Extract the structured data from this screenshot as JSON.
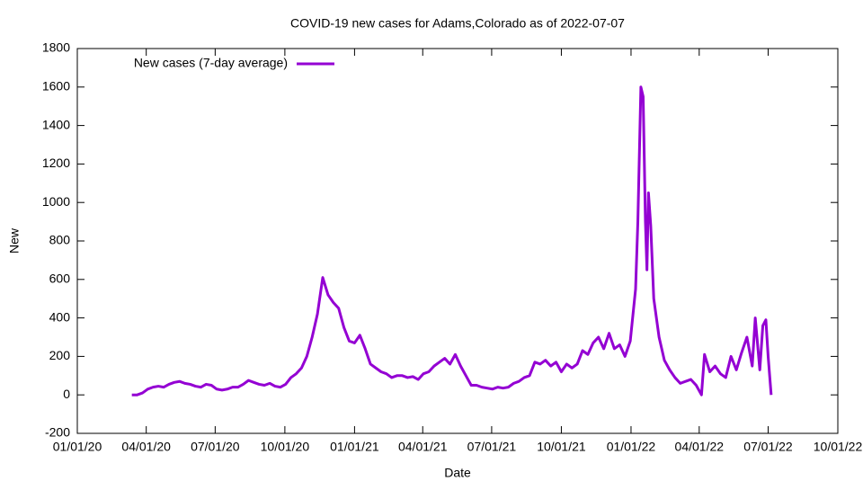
{
  "chart_data": {
    "type": "line",
    "title": "COVID-19 new cases for Adams,Colorado as of 2022-07-07",
    "x_label": "Date",
    "y_label": "New",
    "legend": "top left",
    "xlim": [
      "2020-01-01",
      "2022-10-01"
    ],
    "xticks": [
      {
        "value": "2020-01-01",
        "label": "01/01/20"
      },
      {
        "value": "2020-04-01",
        "label": "04/01/20"
      },
      {
        "value": "2020-07-01",
        "label": "07/01/20"
      },
      {
        "value": "2020-10-01",
        "label": "10/01/20"
      },
      {
        "value": "2021-01-01",
        "label": "01/01/21"
      },
      {
        "value": "2021-04-01",
        "label": "04/01/21"
      },
      {
        "value": "2021-07-01",
        "label": "07/01/21"
      },
      {
        "value": "2021-10-01",
        "label": "10/01/21"
      },
      {
        "value": "2022-01-01",
        "label": "01/01/22"
      },
      {
        "value": "2022-04-01",
        "label": "04/01/22"
      },
      {
        "value": "2022-07-01",
        "label": "07/01/22"
      },
      {
        "value": "2022-10-01",
        "label": "10/01/22"
      }
    ],
    "ylim": [
      -200,
      1800
    ],
    "yticks": [
      -200,
      0,
      200,
      400,
      600,
      800,
      1000,
      1200,
      1400,
      1600,
      1800
    ],
    "x": [
      "2020-03-13",
      "2020-03-20",
      "2020-03-27",
      "2020-04-03",
      "2020-04-10",
      "2020-04-17",
      "2020-04-24",
      "2020-05-01",
      "2020-05-08",
      "2020-05-15",
      "2020-05-22",
      "2020-05-29",
      "2020-06-05",
      "2020-06-12",
      "2020-06-19",
      "2020-06-26",
      "2020-07-03",
      "2020-07-10",
      "2020-07-17",
      "2020-07-24",
      "2020-07-31",
      "2020-08-07",
      "2020-08-14",
      "2020-08-21",
      "2020-08-28",
      "2020-09-04",
      "2020-09-11",
      "2020-09-18",
      "2020-09-25",
      "2020-10-02",
      "2020-10-09",
      "2020-10-16",
      "2020-10-23",
      "2020-10-30",
      "2020-11-06",
      "2020-11-13",
      "2020-11-20",
      "2020-11-27",
      "2020-12-04",
      "2020-12-11",
      "2020-12-18",
      "2020-12-25",
      "2021-01-01",
      "2021-01-08",
      "2021-01-15",
      "2021-01-22",
      "2021-01-29",
      "2021-02-05",
      "2021-02-12",
      "2021-02-19",
      "2021-02-26",
      "2021-03-05",
      "2021-03-12",
      "2021-03-19",
      "2021-03-26",
      "2021-04-02",
      "2021-04-09",
      "2021-04-16",
      "2021-04-23",
      "2021-04-30",
      "2021-05-07",
      "2021-05-14",
      "2021-05-21",
      "2021-05-28",
      "2021-06-04",
      "2021-06-11",
      "2021-06-18",
      "2021-06-25",
      "2021-07-02",
      "2021-07-09",
      "2021-07-16",
      "2021-07-23",
      "2021-07-30",
      "2021-08-06",
      "2021-08-13",
      "2021-08-20",
      "2021-08-27",
      "2021-09-03",
      "2021-09-10",
      "2021-09-17",
      "2021-09-24",
      "2021-10-01",
      "2021-10-08",
      "2021-10-15",
      "2021-10-22",
      "2021-10-29",
      "2021-11-05",
      "2021-11-12",
      "2021-11-19",
      "2021-11-26",
      "2021-12-03",
      "2021-12-10",
      "2021-12-17",
      "2021-12-24",
      "2021-12-31",
      "2022-01-07",
      "2022-01-10",
      "2022-01-14",
      "2022-01-17",
      "2022-01-20",
      "2022-01-22",
      "2022-01-24",
      "2022-01-27",
      "2022-01-31",
      "2022-02-07",
      "2022-02-14",
      "2022-02-21",
      "2022-02-28",
      "2022-03-07",
      "2022-03-14",
      "2022-03-21",
      "2022-03-28",
      "2022-04-04",
      "2022-04-08",
      "2022-04-15",
      "2022-04-22",
      "2022-04-29",
      "2022-05-06",
      "2022-05-13",
      "2022-05-20",
      "2022-05-27",
      "2022-06-03",
      "2022-06-10",
      "2022-06-14",
      "2022-06-20",
      "2022-06-24",
      "2022-06-28",
      "2022-07-01",
      "2022-07-05"
    ],
    "series": [
      {
        "name": "New cases (7-day average)",
        "color": "#9400d3",
        "values": [
          0,
          0,
          10,
          30,
          40,
          45,
          40,
          55,
          65,
          70,
          60,
          55,
          45,
          40,
          55,
          50,
          30,
          25,
          30,
          40,
          40,
          55,
          75,
          65,
          55,
          50,
          60,
          45,
          40,
          55,
          90,
          110,
          140,
          200,
          300,
          420,
          610,
          520,
          480,
          450,
          350,
          280,
          270,
          310,
          240,
          160,
          140,
          120,
          110,
          90,
          100,
          100,
          90,
          95,
          80,
          110,
          120,
          150,
          170,
          190,
          160,
          210,
          150,
          100,
          50,
          50,
          40,
          35,
          30,
          40,
          35,
          40,
          60,
          70,
          90,
          100,
          170,
          160,
          180,
          150,
          170,
          120,
          160,
          140,
          160,
          230,
          210,
          270,
          300,
          240,
          320,
          240,
          260,
          200,
          280,
          550,
          900,
          1600,
          1550,
          900,
          650,
          1050,
          880,
          500,
          300,
          180,
          130,
          90,
          60,
          70,
          80,
          50,
          0,
          210,
          120,
          150,
          110,
          90,
          200,
          130,
          220,
          300,
          150,
          400,
          130,
          360,
          390,
          200,
          0
        ]
      }
    ]
  }
}
